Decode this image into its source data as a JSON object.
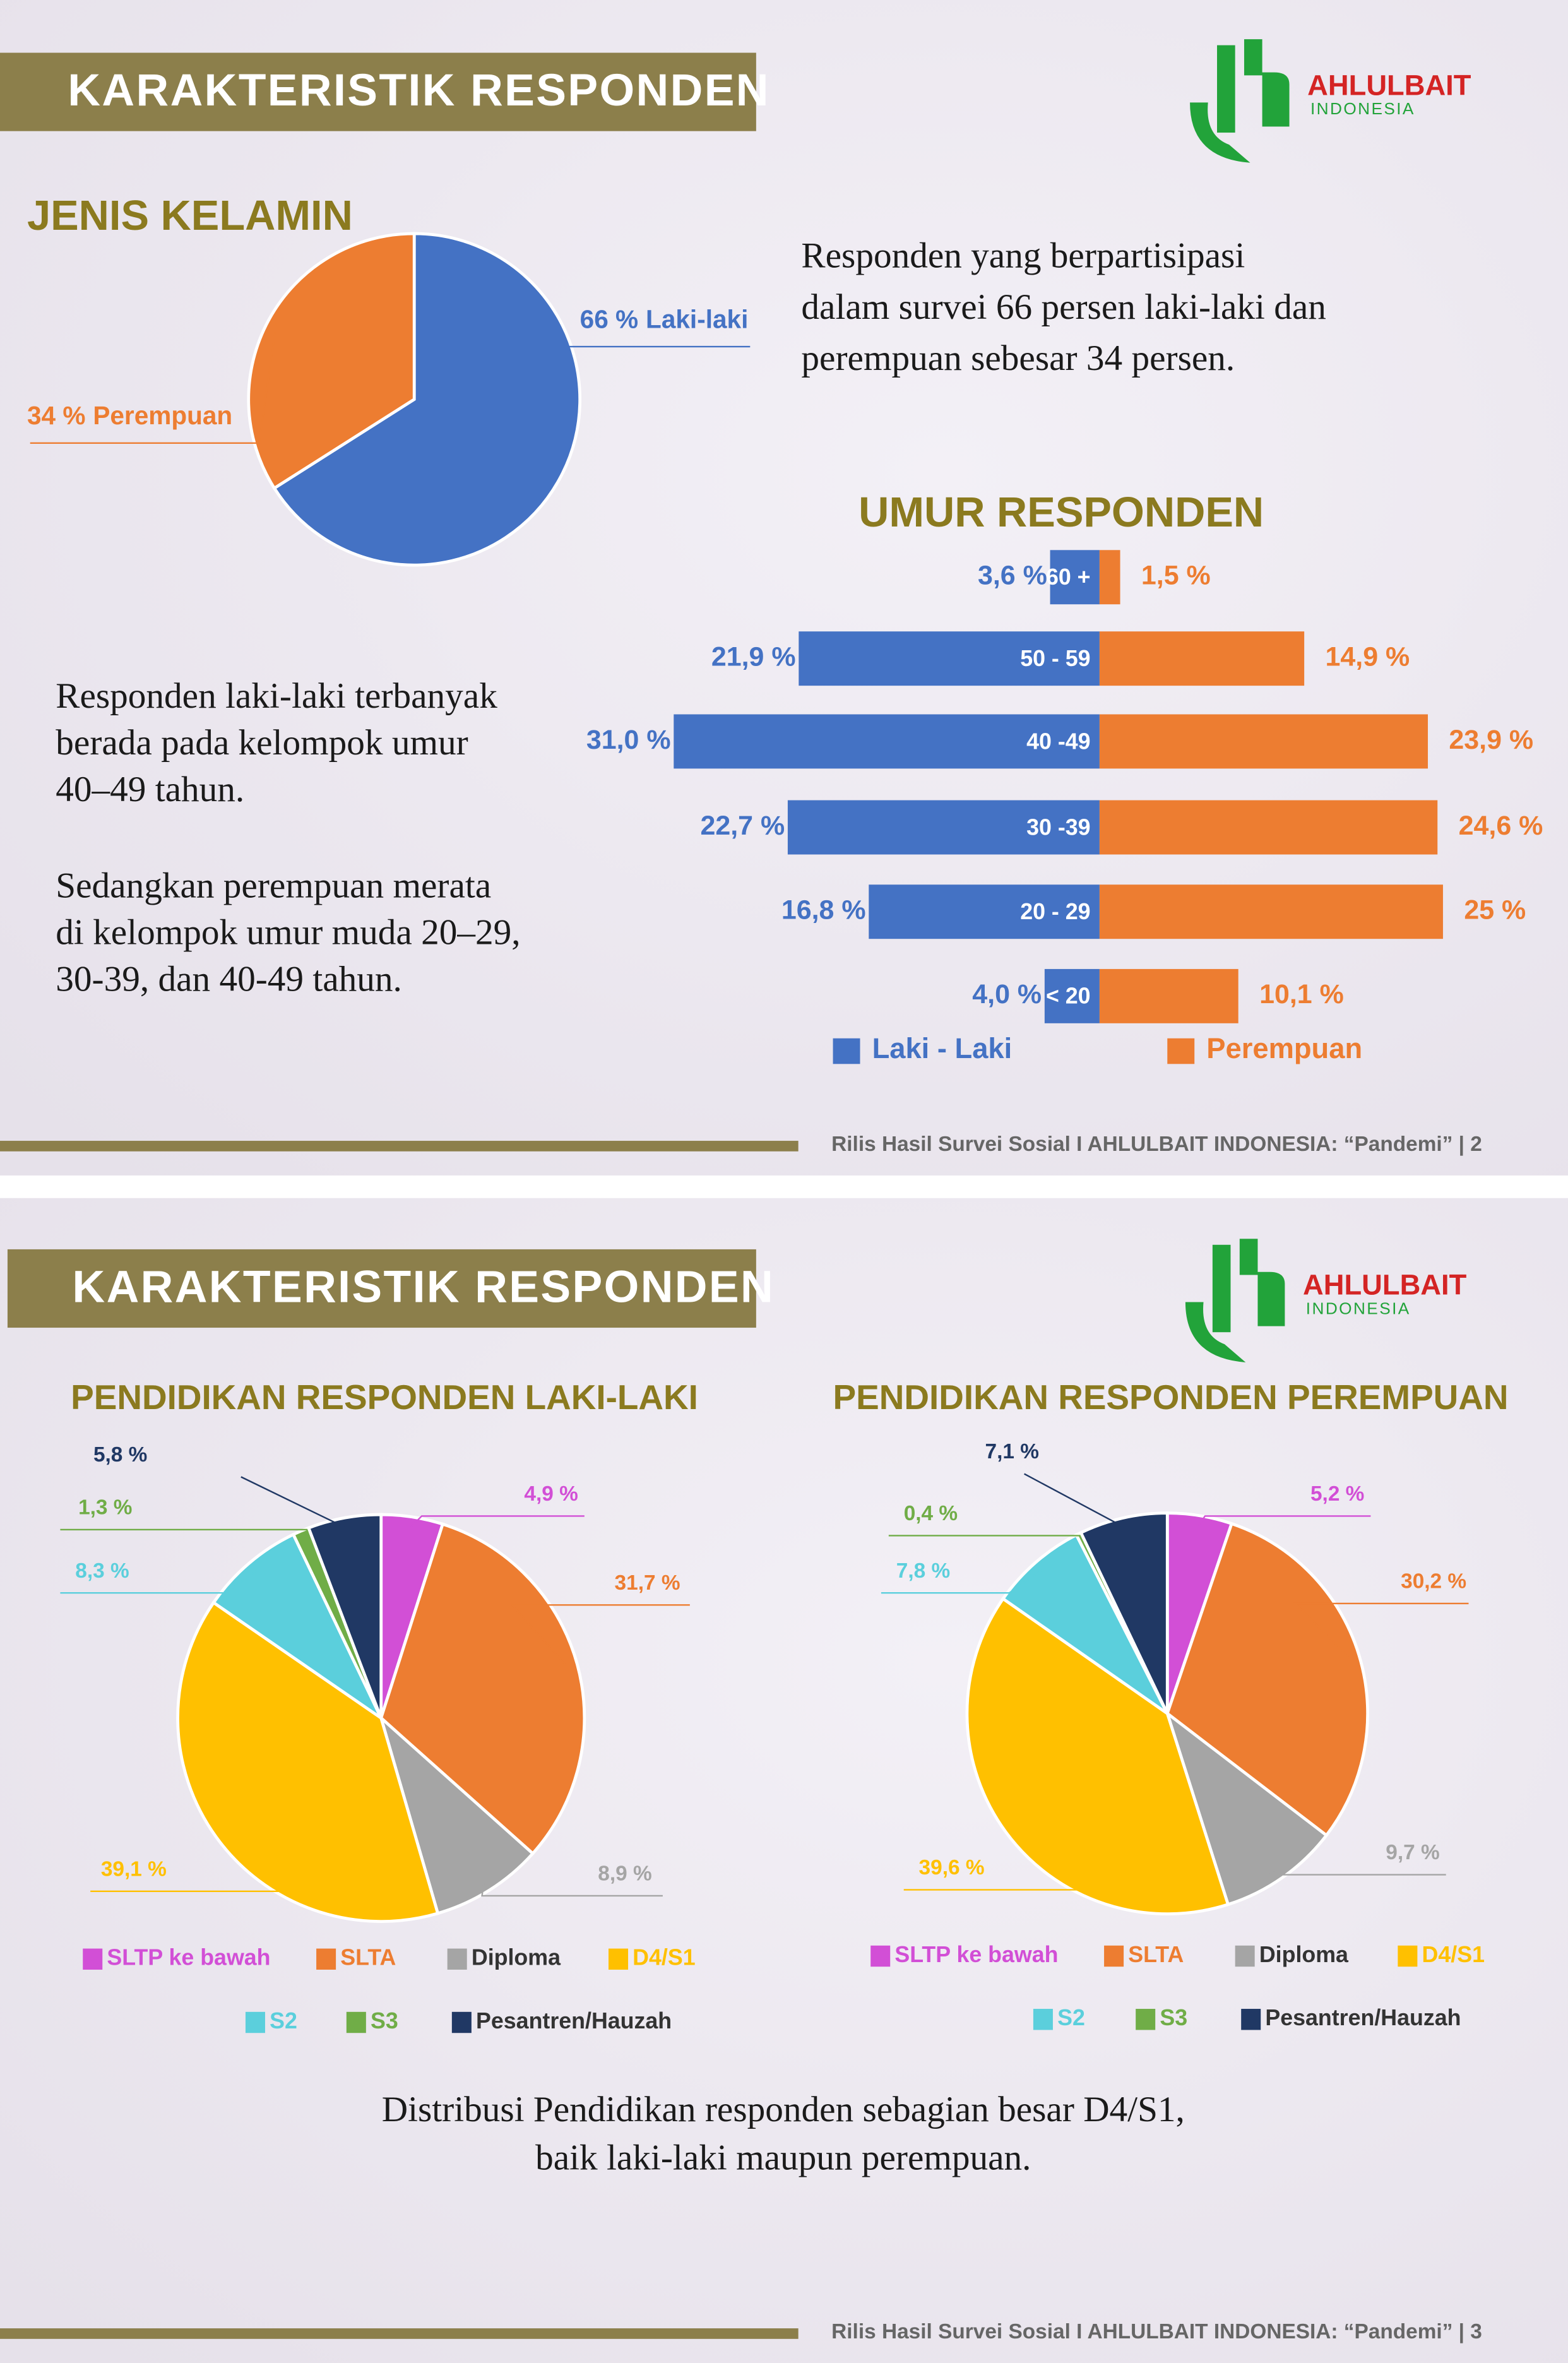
{
  "slides": [
    {
      "title": "KARAKTERISTIK RESPONDEN",
      "logo": "AHLULBAIT",
      "logo_sub": "INDONESIA",
      "paragraphs": [
        [
          "Responden yang berpartisipasi",
          "dalam survei 66 persen laki-laki dan",
          "perempuan sebesar 34 persen."
        ],
        [
          "Responden laki-laki terbanyak",
          "berada pada kelompok umur",
          "40–49 tahun."
        ],
        [
          "Sedangkan perempuan merata",
          "di kelompok umur muda 20–29,",
          "30-39, dan 40-49 tahun."
        ]
      ],
      "footer": "Rilis Hasil Survei Sosial I AHLULBAIT INDONESIA: “Pandemi” | 2"
    },
    {
      "title": "KARAKTERISTIK RESPONDEN",
      "logo": "AHLULBAIT",
      "logo_sub": "INDONESIA",
      "paragraphs": [
        [
          "Distribusi Pendidikan responden sebagian besar D4/S1,",
          "baik laki-laki maupun perempuan."
        ]
      ],
      "footer": "Rilis Hasil Survei Sosial I AHLULBAIT INDONESIA: “Pandemi” | 3"
    }
  ],
  "chart_data": [
    {
      "type": "pie",
      "title": "JENIS KELAMIN",
      "categories": [
        "Laki-laki",
        "Perempuan"
      ],
      "values": [
        66,
        34
      ],
      "value_labels": [
        "66 %",
        "34 %"
      ],
      "colors": [
        "#4472c4",
        "#ed7d31"
      ]
    },
    {
      "type": "bar",
      "diverging": true,
      "title": "UMUR RESPONDEN",
      "categories": [
        "60 +",
        "50 - 59",
        "40 -49",
        "30 -39",
        "20 - 29",
        "< 20"
      ],
      "series": [
        {
          "name": "Laki - Laki",
          "color": "#4472c4",
          "values": [
            3.6,
            21.9,
            31.0,
            22.7,
            16.8,
            4.0
          ],
          "value_labels": [
            "3,6 %",
            "21,9 %",
            "31,0 %",
            "22,7 %",
            "16,8 %",
            "4,0 %"
          ]
        },
        {
          "name": "Perempuan",
          "color": "#ed7d31",
          "values": [
            1.5,
            14.9,
            23.9,
            24.6,
            25,
            10.1
          ],
          "value_labels": [
            "1,5 %",
            "14,9 %",
            "23,9 %",
            "24,6 %",
            "25 %",
            "10,1 %"
          ]
        }
      ]
    },
    {
      "type": "pie",
      "title": "PENDIDIKAN RESPONDEN LAKI-LAKI",
      "categories": [
        "SLTP ke bawah",
        "SLTA",
        "Diploma",
        "D4/S1",
        "S2",
        "S3",
        "Pesantren/Hauzah"
      ],
      "values": [
        4.9,
        31.7,
        8.9,
        39.1,
        8.3,
        1.3,
        5.8
      ],
      "value_labels": [
        "4,9 %",
        "31,7 %",
        "8,9 %",
        "39,1 %",
        "8,3 %",
        "1,3 %",
        "5,8 %"
      ],
      "colors": [
        "#d24fd6",
        "#ed7d31",
        "#a5a5a5",
        "#ffc000",
        "#5bcfdc",
        "#70ad47",
        "#203864"
      ],
      "legend": "bottom"
    },
    {
      "type": "pie",
      "title": "PENDIDIKAN RESPONDEN PEREMPUAN",
      "categories": [
        "SLTP ke bawah",
        "SLTA",
        "Diploma",
        "D4/S1",
        "S2",
        "S3",
        "Pesantren/Hauzah"
      ],
      "values": [
        5.2,
        30.2,
        9.7,
        39.6,
        7.8,
        0.4,
        7.1
      ],
      "value_labels": [
        "5,2 %",
        "30,2 %",
        "9,7 %",
        "39,6 %",
        "7,8 %",
        "0,4 %",
        "7,1 %"
      ],
      "colors": [
        "#d24fd6",
        "#ed7d31",
        "#a5a5a5",
        "#ffc000",
        "#5bcfdc",
        "#70ad47",
        "#203864"
      ],
      "legend": "bottom"
    }
  ]
}
